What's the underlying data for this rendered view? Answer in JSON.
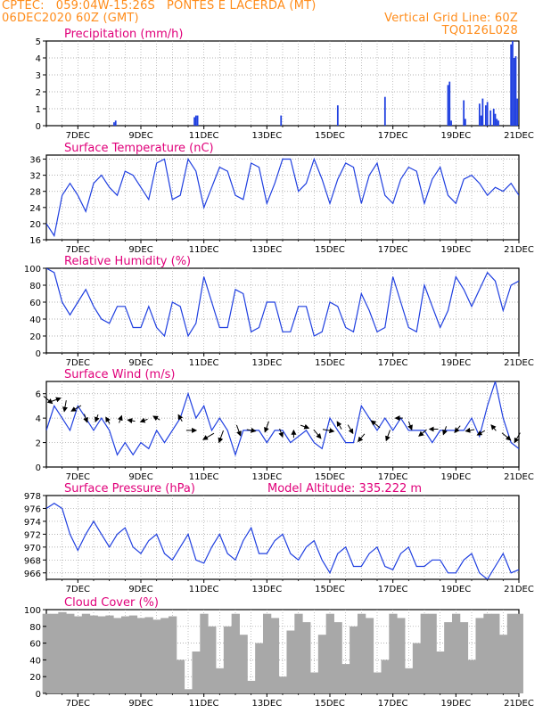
{
  "header": {
    "source": "CPTEC:",
    "coords": "059:04W-15:26S",
    "station": "PONTES E LACERDA (MT)",
    "run": "06DEC2020 60Z (GMT)",
    "grid_note": "Vertical Grid Line: 60Z",
    "model": "TQ0126L028"
  },
  "colors": {
    "header": "#ff8c1a",
    "title": "#e0007a",
    "series": "#1f3fe0",
    "arrow": "#000000",
    "cloud": "#a8a8a8",
    "grid": "#9a9a9a"
  },
  "x_ticks": [
    "7DEC",
    "9DEC",
    "11DEC",
    "13DEC",
    "15DEC",
    "17DEC",
    "19DEC",
    "21DEC"
  ],
  "chart_data": [
    {
      "id": "precip",
      "type": "bar",
      "title": "Precipitation (mm/h)",
      "ylim": [
        0,
        5
      ],
      "yticks": [
        0,
        1,
        2,
        3,
        4,
        5
      ],
      "x_unit": "days since 06DEC2020 00Z",
      "xlim": [
        0,
        15
      ],
      "bar_width": 0.05,
      "x": [
        2.15,
        2.2,
        4.7,
        4.75,
        4.8,
        7.45,
        9.25,
        10.75,
        12.75,
        12.8,
        12.85,
        13.25,
        13.3,
        13.75,
        13.8,
        13.85,
        13.95,
        14,
        14.1,
        14.2,
        14.25,
        14.3,
        14.35,
        14.75,
        14.8,
        14.85,
        14.9,
        14.95
      ],
      "values": [
        0.2,
        0.3,
        0.5,
        0.6,
        0.6,
        0.6,
        1.2,
        1.7,
        2.4,
        2.6,
        0.3,
        1.5,
        0.4,
        1.3,
        0.6,
        1.6,
        1.2,
        1.4,
        0.9,
        1.0,
        0.7,
        0.4,
        0.3,
        4.8,
        5.0,
        4.0,
        4.1,
        1.6
      ]
    },
    {
      "id": "temp",
      "type": "line",
      "title": "Surface Temperature (nC)",
      "ylim": [
        16,
        37
      ],
      "yticks": [
        16,
        20,
        24,
        28,
        32,
        36
      ],
      "x": [
        0,
        0.25,
        0.5,
        0.75,
        1,
        1.25,
        1.5,
        1.75,
        2,
        2.25,
        2.5,
        2.75,
        3,
        3.25,
        3.5,
        3.75,
        4,
        4.25,
        4.5,
        4.75,
        5,
        5.25,
        5.5,
        5.75,
        6,
        6.25,
        6.5,
        6.75,
        7,
        7.25,
        7.5,
        7.75,
        8,
        8.25,
        8.5,
        8.75,
        9,
        9.25,
        9.5,
        9.75,
        10,
        10.25,
        10.5,
        10.75,
        11,
        11.25,
        11.5,
        11.75,
        12,
        12.25,
        12.5,
        12.75,
        13,
        13.25,
        13.5,
        13.75,
        14,
        14.25,
        14.5,
        14.75,
        15
      ],
      "values": [
        20,
        17,
        27,
        30,
        27,
        23,
        30,
        32,
        29,
        27,
        33,
        32,
        29,
        26,
        35,
        36,
        26,
        27,
        36,
        33,
        24,
        29,
        34,
        33,
        27,
        26,
        35,
        34,
        25,
        30,
        36,
        36,
        28,
        30,
        36,
        31,
        25,
        31,
        35,
        34,
        25,
        32,
        35,
        27,
        25,
        31,
        34,
        33,
        25,
        31,
        34,
        27,
        25,
        31,
        32,
        30,
        27,
        29,
        28,
        30,
        27
      ]
    },
    {
      "id": "rh",
      "type": "line",
      "title": "Relative Humidity (%)",
      "ylim": [
        0,
        100
      ],
      "yticks": [
        0,
        20,
        40,
        60,
        80,
        100
      ],
      "x": [
        0,
        0.25,
        0.5,
        0.75,
        1,
        1.25,
        1.5,
        1.75,
        2,
        2.25,
        2.5,
        2.75,
        3,
        3.25,
        3.5,
        3.75,
        4,
        4.25,
        4.5,
        4.75,
        5,
        5.25,
        5.5,
        5.75,
        6,
        6.25,
        6.5,
        6.75,
        7,
        7.25,
        7.5,
        7.75,
        8,
        8.25,
        8.5,
        8.75,
        9,
        9.25,
        9.5,
        9.75,
        10,
        10.25,
        10.5,
        10.75,
        11,
        11.25,
        11.5,
        11.75,
        12,
        12.25,
        12.5,
        12.75,
        13,
        13.25,
        13.5,
        13.75,
        14,
        14.25,
        14.5,
        14.75,
        15
      ],
      "values": [
        100,
        95,
        60,
        45,
        60,
        75,
        55,
        40,
        35,
        55,
        55,
        30,
        30,
        55,
        30,
        20,
        60,
        55,
        20,
        35,
        90,
        60,
        30,
        30,
        75,
        70,
        25,
        30,
        60,
        60,
        25,
        25,
        55,
        55,
        20,
        25,
        60,
        55,
        30,
        25,
        70,
        50,
        25,
        30,
        90,
        60,
        30,
        25,
        80,
        55,
        30,
        50,
        90,
        75,
        55,
        75,
        95,
        85,
        50,
        80,
        85
      ]
    },
    {
      "id": "wind",
      "type": "line",
      "title": "Surface Wind (m/s)",
      "ylim": [
        0,
        7
      ],
      "yticks": [
        0,
        2,
        4,
        6
      ],
      "x": [
        0,
        0.25,
        0.5,
        0.75,
        1,
        1.25,
        1.5,
        1.75,
        2,
        2.25,
        2.5,
        2.75,
        3,
        3.25,
        3.5,
        3.75,
        4,
        4.25,
        4.5,
        4.75,
        5,
        5.25,
        5.5,
        5.75,
        6,
        6.25,
        6.5,
        6.75,
        7,
        7.25,
        7.5,
        7.75,
        8,
        8.25,
        8.5,
        8.75,
        9,
        9.25,
        9.5,
        9.75,
        10,
        10.25,
        10.5,
        10.75,
        11,
        11.25,
        11.5,
        11.75,
        12,
        12.25,
        12.5,
        12.75,
        13,
        13.25,
        13.5,
        13.75,
        14,
        14.25,
        14.5,
        14.75,
        15
      ],
      "values": [
        3,
        5,
        4,
        3,
        5,
        4,
        3,
        4,
        3,
        1,
        2,
        1,
        2,
        1.5,
        3,
        2,
        3,
        4,
        6,
        4,
        5,
        3,
        4,
        3,
        1,
        3,
        3,
        3,
        2,
        3,
        3,
        2,
        2.5,
        3,
        2,
        1.5,
        4,
        3,
        2,
        2,
        5,
        4,
        3,
        4,
        3,
        4,
        3,
        3,
        3,
        2,
        3,
        3,
        3,
        3,
        4,
        2.5,
        5,
        7,
        4,
        2,
        1.5
      ],
      "arrows_x": [
        0.05,
        0.3,
        0.6,
        0.95,
        1.25,
        1.6,
        1.95,
        2.35,
        2.7,
        3.1,
        3.5,
        4.25,
        4.6,
        5.15,
        5.55,
        6.1,
        6.5,
        7.0,
        7.45,
        7.85,
        8.2,
        8.6,
        8.95,
        9.3,
        9.65,
        10.0,
        10.45,
        10.85,
        11.2,
        11.55,
        11.95,
        12.3,
        12.65,
        13.05,
        13.45,
        13.8,
        14.2,
        14.6,
        14.95
      ],
      "arrows_y": [
        5.5,
        5.5,
        5.0,
        4.8,
        4.0,
        4.0,
        3.8,
        3.9,
        3.8,
        3.8,
        4.0,
        4.0,
        3.0,
        2.5,
        2.5,
        3.0,
        3.0,
        3.3,
        2.8,
        2.7,
        3.3,
        2.7,
        3.0,
        3.4,
        3.1,
        2.4,
        3.5,
        2.6,
        4.0,
        3.4,
        2.8,
        3.1,
        3.0,
        3.1,
        3.0,
        2.8,
        3.2,
        2.5,
        2.4
      ],
      "arrows_dir": [
        130,
        70,
        190,
        240,
        160,
        200,
        330,
        20,
        280,
        250,
        300,
        330,
        90,
        240,
        200,
        160,
        100,
        200,
        160,
        0,
        110,
        140,
        100,
        330,
        150,
        220,
        310,
        200,
        270,
        160,
        230,
        270,
        200,
        220,
        260,
        240,
        320,
        130,
        210
      ],
      "arrows_len": [
        0.9,
        0.8,
        0.9,
        0.9,
        0.7,
        0.6,
        0.6,
        0.6,
        0.6,
        0.6,
        0.6,
        0.6,
        0.8,
        1.0,
        1.0,
        0.9,
        0.7,
        0.9,
        0.7,
        0.6,
        0.7,
        0.9,
        0.9,
        0.7,
        0.8,
        0.8,
        0.9,
        0.9,
        0.6,
        0.7,
        0.8,
        0.7,
        0.7,
        0.7,
        0.7,
        0.7,
        0.6,
        0.9,
        0.9
      ]
    },
    {
      "id": "pres",
      "type": "line",
      "title": "Surface Pressure (hPa)",
      "subtitle": "Model Altitude: 335.222 m",
      "ylim": [
        965,
        978
      ],
      "yticks": [
        966,
        968,
        970,
        972,
        974,
        976,
        978
      ],
      "x": [
        0,
        0.25,
        0.5,
        0.75,
        1,
        1.25,
        1.5,
        1.75,
        2,
        2.25,
        2.5,
        2.75,
        3,
        3.25,
        3.5,
        3.75,
        4,
        4.25,
        4.5,
        4.75,
        5,
        5.25,
        5.5,
        5.75,
        6,
        6.25,
        6.5,
        6.75,
        7,
        7.25,
        7.5,
        7.75,
        8,
        8.25,
        8.5,
        8.75,
        9,
        9.25,
        9.5,
        9.75,
        10,
        10.25,
        10.5,
        10.75,
        11,
        11.25,
        11.5,
        11.75,
        12,
        12.25,
        12.5,
        12.75,
        13,
        13.25,
        13.5,
        13.75,
        14,
        14.25,
        14.5,
        14.75,
        15
      ],
      "values": [
        976,
        976.8,
        976,
        972,
        969.5,
        972,
        974,
        972,
        970,
        972,
        973,
        970,
        969,
        971,
        972,
        969,
        968,
        970,
        972,
        968,
        967.5,
        970,
        972,
        969,
        968,
        971,
        973,
        969,
        969,
        971,
        972,
        969,
        968,
        970,
        971,
        968,
        966,
        969,
        970,
        967,
        967,
        969,
        970,
        967,
        966.5,
        969,
        970,
        967,
        967,
        968,
        968,
        966,
        966,
        968,
        969,
        966,
        965,
        967,
        969,
        966,
        966.5
      ]
    },
    {
      "id": "cloud",
      "type": "area",
      "title": "Cloud Cover (%)",
      "ylim": [
        0,
        100
      ],
      "yticks": [
        0,
        20,
        40,
        60,
        80,
        100
      ],
      "x": [
        0,
        0.25,
        0.5,
        0.75,
        1,
        1.25,
        1.5,
        1.75,
        2,
        2.25,
        2.5,
        2.75,
        3,
        3.25,
        3.5,
        3.75,
        4,
        4.25,
        4.5,
        4.75,
        5,
        5.25,
        5.5,
        5.75,
        6,
        6.25,
        6.5,
        6.75,
        7,
        7.25,
        7.5,
        7.75,
        8,
        8.25,
        8.5,
        8.75,
        9,
        9.25,
        9.5,
        9.75,
        10,
        10.25,
        10.5,
        10.75,
        11,
        11.25,
        11.5,
        11.75,
        12,
        12.25,
        12.5,
        12.75,
        13,
        13.25,
        13.5,
        13.75,
        14,
        14.25,
        14.5,
        14.75,
        15
      ],
      "values": [
        95,
        95,
        97,
        95,
        92,
        95,
        93,
        92,
        93,
        90,
        92,
        93,
        90,
        91,
        88,
        90,
        92,
        40,
        5,
        50,
        95,
        80,
        30,
        80,
        95,
        70,
        15,
        60,
        95,
        90,
        20,
        75,
        95,
        85,
        25,
        70,
        95,
        85,
        35,
        80,
        95,
        90,
        25,
        40,
        95,
        90,
        30,
        60,
        95,
        95,
        50,
        85,
        95,
        85,
        40,
        90,
        95,
        95,
        70,
        95,
        95
      ]
    }
  ]
}
